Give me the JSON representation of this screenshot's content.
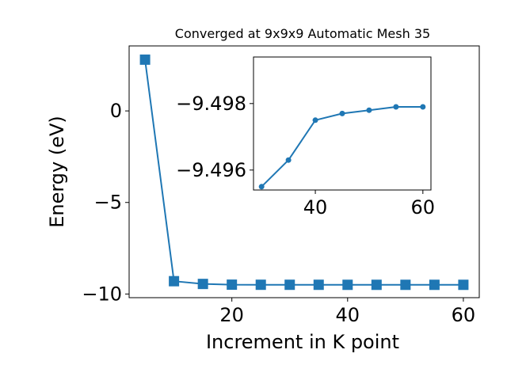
{
  "chart_data": [
    {
      "type": "line",
      "title": "Converged at 9x9x9 Automatic Mesh 35",
      "xlabel": "Increment in K point",
      "ylabel": "Energy (eV)",
      "xlim": [
        2.25,
        62.75
      ],
      "ylim": [
        -10.2,
        3.55
      ],
      "xticks": [
        20,
        40,
        60
      ],
      "yticks": [
        0,
        -5,
        -10
      ],
      "xtick_labels": [
        "20",
        "40",
        "60"
      ],
      "ytick_labels": [
        "0",
        "−5",
        "−10"
      ],
      "marker": "square",
      "color": "#1f77b4",
      "grid": false,
      "series": [
        {
          "x": [
            5,
            10,
            15,
            20,
            25,
            30,
            35,
            40,
            45,
            50,
            55,
            60
          ],
          "y": [
            2.8,
            -9.3,
            -9.45,
            -9.49,
            -9.495,
            -9.4955,
            -9.4963,
            -9.4975,
            -9.4977,
            -9.4978,
            -9.4979,
            -9.4979
          ]
        }
      ]
    },
    {
      "type": "line",
      "inset": true,
      "xlim": [
        28.5,
        61.5
      ],
      "ylim": [
        -9.4954,
        -9.4994
      ],
      "xticks": [
        40,
        60
      ],
      "yticks": [
        -9.498,
        -9.496
      ],
      "xtick_labels": [
        "40",
        "60"
      ],
      "ytick_labels": [
        "−9.498",
        "−9.496"
      ],
      "marker": "circle",
      "color": "#1f77b4",
      "grid": false,
      "series": [
        {
          "x": [
            30,
            35,
            40,
            45,
            50,
            55,
            60
          ],
          "y": [
            -9.4955,
            -9.4963,
            -9.4975,
            -9.4977,
            -9.4978,
            -9.4979,
            -9.4979
          ]
        }
      ]
    }
  ]
}
